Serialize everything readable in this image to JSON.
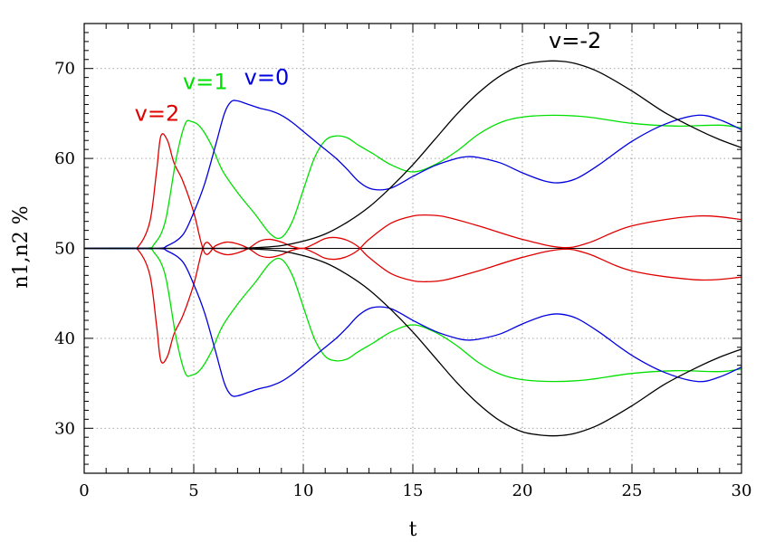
{
  "chart_data": {
    "type": "line",
    "title": "",
    "xlabel": "t",
    "ylabel": "n1,n2 %",
    "xlim": [
      0,
      30
    ],
    "ylim": [
      25,
      75
    ],
    "x_ticks": [
      0,
      5,
      10,
      15,
      20,
      25,
      30
    ],
    "y_ticks": [
      30,
      40,
      50,
      60,
      70
    ],
    "grid": true,
    "reference_line": 50,
    "annotations": [
      {
        "text": "v=2",
        "color": "#e00000",
        "x": 2.3,
        "y": 64.2
      },
      {
        "text": "v=1",
        "color": "#00e000",
        "x": 4.5,
        "y": 67.7
      },
      {
        "text": "v=0",
        "color": "#0000e0",
        "x": 7.3,
        "y": 68.2
      },
      {
        "text": "v=-2",
        "color": "#000000",
        "x": 21.2,
        "y": 72.3
      }
    ],
    "series": [
      {
        "color": "#e00000",
        "x": [
          0,
          2,
          2.5,
          3,
          3.3,
          3.5,
          3.8,
          4.1,
          4.5,
          5,
          5.5,
          6,
          6.5,
          7,
          7.5,
          8,
          8.5,
          9,
          9.5,
          10,
          10.5,
          11,
          11.5,
          12,
          12.5,
          13,
          14,
          15,
          15.7,
          16.5,
          18,
          20,
          21.8,
          23,
          25,
          28,
          30
        ],
        "y": [
          50,
          50,
          50.3,
          53,
          58.5,
          62.5,
          62,
          59.5,
          57.5,
          54,
          49.5,
          50.3,
          50.7,
          50.5,
          50,
          49.2,
          49,
          49.3,
          49.8,
          50,
          49.5,
          48.9,
          48.8,
          49.1,
          49.8,
          51,
          52.8,
          53.6,
          53.7,
          53.5,
          52.5,
          51,
          50.1,
          50.6,
          52.5,
          53.6,
          53.2
        ]
      },
      {
        "color": "#e00000",
        "x": [
          0,
          2,
          2.5,
          3,
          3.3,
          3.5,
          3.8,
          4.1,
          4.5,
          5,
          5.5,
          6,
          6.5,
          7,
          7.5,
          8,
          8.5,
          9,
          9.5,
          10,
          10.5,
          11,
          11.5,
          12,
          12.5,
          13,
          14,
          15,
          15.7,
          16.5,
          18,
          20,
          21.8,
          23,
          25,
          28,
          30
        ],
        "y": [
          50,
          50,
          49.7,
          47,
          41.5,
          37.5,
          38,
          40.5,
          42.5,
          46,
          50.5,
          49.7,
          49.3,
          49.5,
          50,
          50.8,
          51,
          50.7,
          50.2,
          50,
          50.5,
          51.1,
          51.2,
          50.9,
          50.2,
          49,
          47.2,
          46.4,
          46.3,
          46.5,
          47.5,
          49,
          49.9,
          49.4,
          47.5,
          46.5,
          46.8
        ]
      },
      {
        "color": "#00e000",
        "x": [
          0,
          2.7,
          3.2,
          3.7,
          4.2,
          4.6,
          4.9,
          5.3,
          5.8,
          6.3,
          7,
          7.8,
          8.5,
          9,
          9.5,
          10,
          10.5,
          11,
          11.5,
          12,
          12.5,
          13.2,
          14,
          15,
          16,
          17,
          18,
          19,
          20,
          21.5,
          23,
          25,
          27,
          29,
          30
        ],
        "y": [
          50,
          50,
          50.5,
          53,
          60,
          63.8,
          64.1,
          63.5,
          61.5,
          58.7,
          56.2,
          53.8,
          51.6,
          51.2,
          53,
          56.5,
          60,
          62,
          62.5,
          62.3,
          61.5,
          60.5,
          59.3,
          58.5,
          59.3,
          60.8,
          62.7,
          64,
          64.6,
          64.8,
          64.6,
          63.9,
          63.6,
          63.7,
          63.4
        ]
      },
      {
        "color": "#00e000",
        "x": [
          0,
          2.7,
          3.2,
          3.7,
          4.2,
          4.6,
          4.9,
          5.3,
          5.8,
          6.3,
          7,
          7.8,
          8.5,
          9,
          9.5,
          10,
          10.5,
          11,
          11.5,
          12,
          12.5,
          13.2,
          14,
          15,
          16,
          17,
          18,
          19,
          20,
          21.5,
          23,
          25,
          27,
          29,
          30
        ],
        "y": [
          50,
          50,
          49.5,
          47,
          40,
          36.2,
          35.9,
          36.5,
          38.5,
          41.3,
          43.8,
          46.2,
          48.4,
          48.8,
          47,
          43.5,
          40,
          38,
          37.5,
          37.7,
          38.5,
          39.5,
          40.7,
          41.5,
          40.7,
          39.2,
          37.3,
          36,
          35.4,
          35.2,
          35.4,
          36.1,
          36.4,
          36.3,
          36.6
        ]
      },
      {
        "color": "#0000e0",
        "x": [
          0,
          3.2,
          3.8,
          4.5,
          5,
          5.5,
          6,
          6.4,
          6.7,
          7,
          7.5,
          8,
          8.5,
          9,
          9.5,
          10,
          10.5,
          11,
          11.5,
          12,
          12.5,
          13,
          13.5,
          14,
          14.5,
          15,
          16,
          17,
          17.5,
          18,
          19,
          20,
          21,
          21.7,
          22.5,
          23.5,
          25,
          26.5,
          28,
          29,
          30
        ],
        "y": [
          50,
          50,
          50.3,
          51.5,
          54,
          57.2,
          61.5,
          65,
          66.3,
          66.4,
          66,
          65.6,
          65.3,
          64.8,
          64,
          63,
          62,
          61,
          60,
          58.8,
          57.5,
          56.7,
          56.5,
          56.7,
          57.3,
          58,
          59.2,
          60,
          60.2,
          60.1,
          59.5,
          58.4,
          57.5,
          57.3,
          57.8,
          59.3,
          61.9,
          63.8,
          64.8,
          64.3,
          63.2
        ]
      },
      {
        "color": "#0000e0",
        "x": [
          0,
          3.2,
          3.8,
          4.5,
          5,
          5.5,
          6,
          6.4,
          6.7,
          7,
          7.5,
          8,
          8.5,
          9,
          9.5,
          10,
          10.5,
          11,
          11.5,
          12,
          12.5,
          13,
          13.5,
          14,
          14.5,
          15,
          16,
          17,
          17.5,
          18,
          19,
          20,
          21,
          21.7,
          22.5,
          23.5,
          25,
          26.5,
          28,
          29,
          30
        ],
        "y": [
          50,
          50,
          49.7,
          48.5,
          46,
          42.8,
          38.5,
          35,
          33.7,
          33.6,
          34,
          34.4,
          34.7,
          35.2,
          36,
          37,
          38,
          39,
          40,
          41.2,
          42.5,
          43.3,
          43.5,
          43.3,
          42.7,
          42,
          40.8,
          40,
          39.8,
          39.9,
          40.5,
          41.6,
          42.5,
          42.7,
          42.2,
          40.7,
          38.1,
          36.2,
          35.2,
          35.7,
          36.8
        ]
      },
      {
        "color": "#000000",
        "x": [
          0,
          6,
          7,
          8,
          9,
          10,
          11,
          12,
          13,
          14,
          15,
          16,
          17,
          18,
          19,
          20,
          21,
          21.8,
          22.5,
          23.5,
          25,
          26.5,
          28,
          29,
          30
        ],
        "y": [
          50,
          50,
          50,
          50.1,
          50.3,
          50.8,
          51.6,
          52.9,
          54.6,
          56.8,
          59.3,
          62.1,
          64.9,
          67.3,
          69.2,
          70.4,
          70.8,
          70.8,
          70.5,
          69.6,
          67.5,
          65.1,
          63.2,
          62.1,
          61.2
        ]
      },
      {
        "color": "#000000",
        "x": [
          0,
          6,
          7,
          8,
          9,
          10,
          11,
          12,
          13,
          14,
          15,
          16,
          17,
          18,
          19,
          20,
          21,
          21.8,
          22.5,
          23.5,
          25,
          26.5,
          28,
          29,
          30
        ],
        "y": [
          50,
          50,
          50,
          49.9,
          49.7,
          49.2,
          48.4,
          47.1,
          45.4,
          43.2,
          40.7,
          37.9,
          35.1,
          32.7,
          30.8,
          29.6,
          29.2,
          29.2,
          29.5,
          30.4,
          32.5,
          34.9,
          36.8,
          37.9,
          38.8
        ]
      }
    ]
  }
}
